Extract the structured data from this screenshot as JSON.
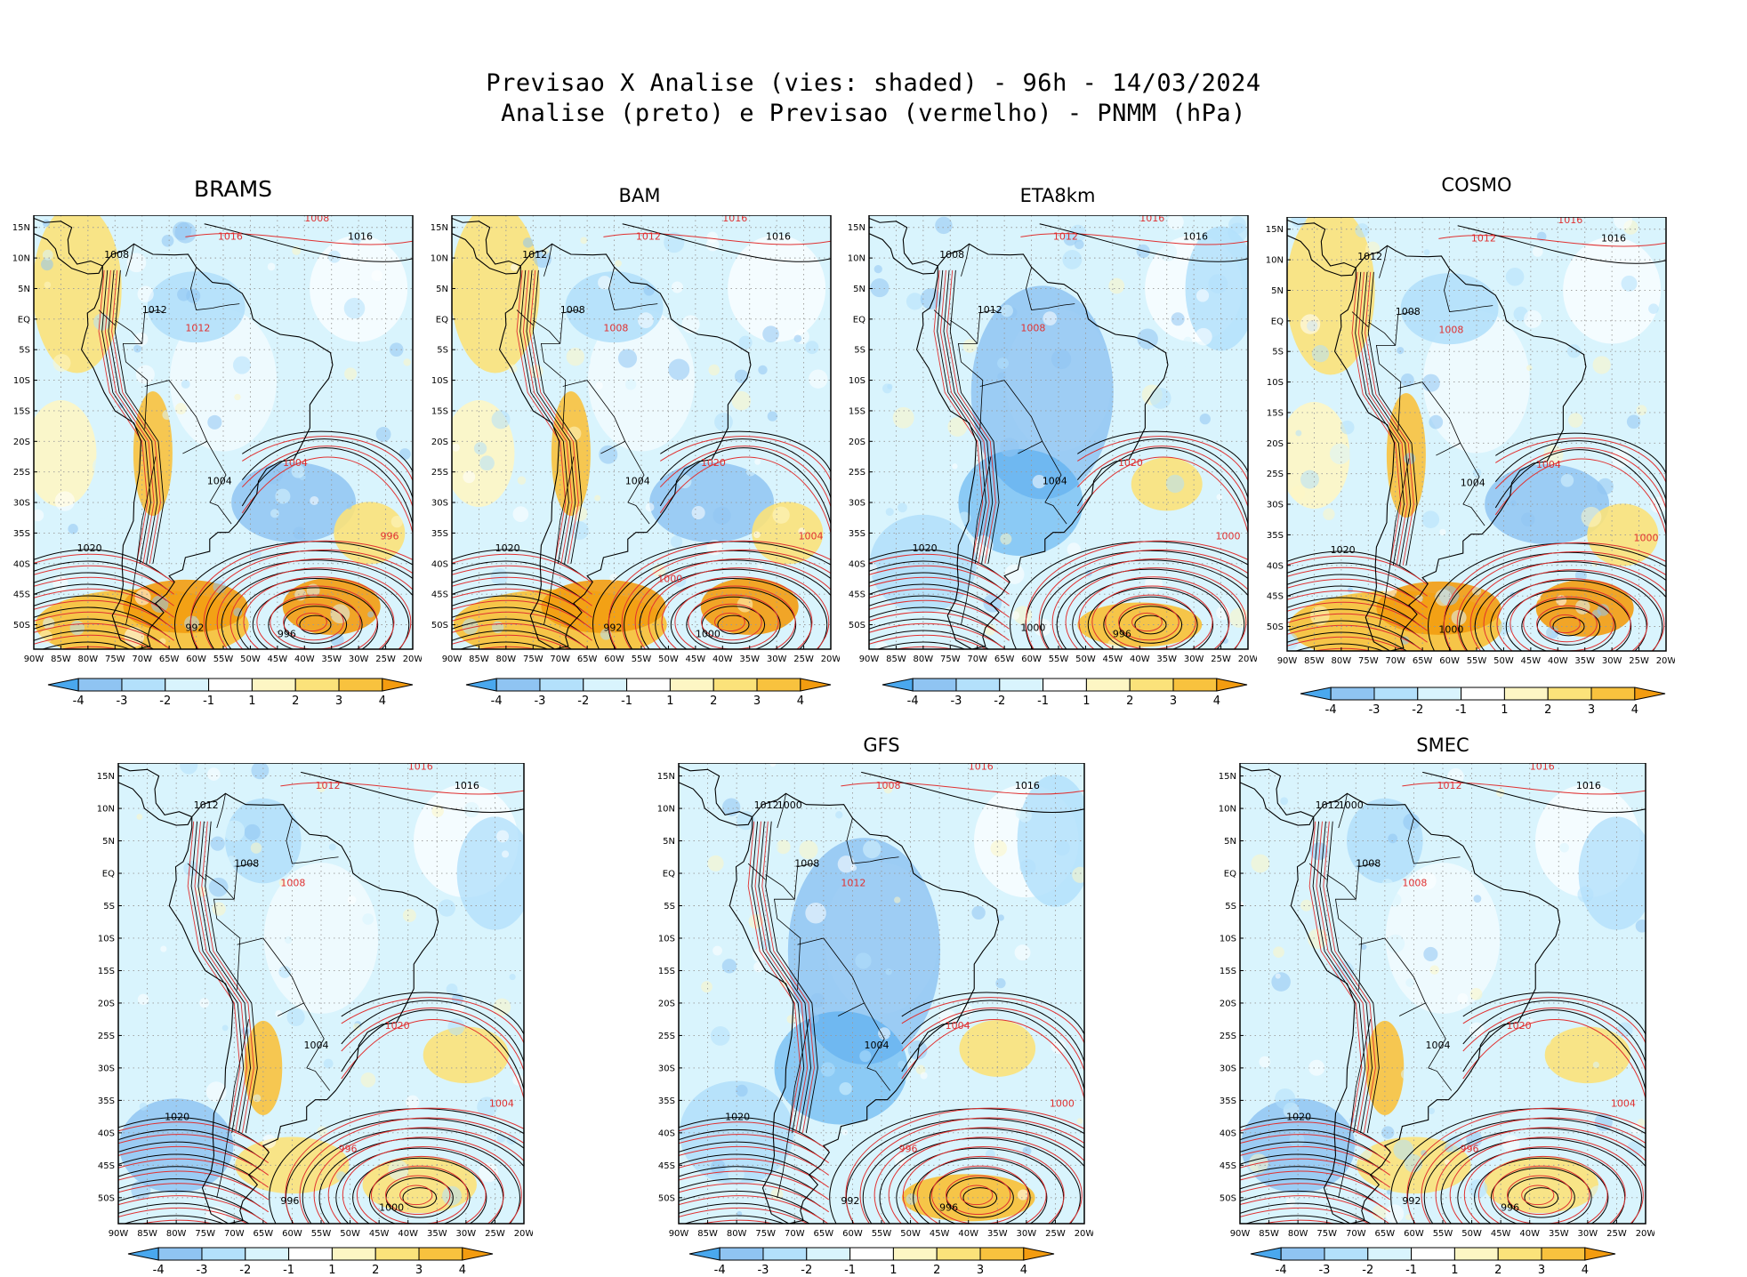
{
  "title": {
    "line1": "Previsao X Analise (vies: shaded) - 96h - 14/03/2024",
    "line2": "Analise (preto) e Previsao (vermelho) - PNMM (hPa)"
  },
  "colors": {
    "neg4": "#4aa8ee",
    "neg3": "#8fc4f2",
    "neg2": "#b3e0fb",
    "neg1": "#d9f4fd",
    "zero": "#ffffff",
    "pos1": "#fdf6c4",
    "pos2": "#fbe27a",
    "pos3": "#f8c23e",
    "pos4": "#f39c10",
    "analysis_line": "#000000",
    "forecast_line": "#e03030",
    "grid": "#9a9a9a"
  },
  "axes": {
    "lat_labels": [
      "15N",
      "10N",
      "5N",
      "EQ",
      "5S",
      "10S",
      "15S",
      "20S",
      "25S",
      "30S",
      "35S",
      "40S",
      "45S",
      "50S"
    ],
    "lon_labels": [
      "90W",
      "85W",
      "80W",
      "75W",
      "70W",
      "65W",
      "60W",
      "55W",
      "50W",
      "45W",
      "40W",
      "35W",
      "30W",
      "25W",
      "20W"
    ]
  },
  "colorbar_labels": [
    "-4",
    "-3",
    "-2",
    "-1",
    "1",
    "2",
    "3",
    "4"
  ],
  "panels": [
    {
      "name": "BRAMS",
      "bias": "warm",
      "black_labels": [
        "1008",
        "1016",
        "1012",
        "1004",
        "1020",
        "992",
        "996"
      ],
      "red_labels": [
        "1016",
        "1008",
        "1012",
        "1004",
        "996"
      ]
    },
    {
      "name": "BAM",
      "bias": "warm",
      "black_labels": [
        "1012",
        "1016",
        "1008",
        "1004",
        "1020",
        "992",
        "1000"
      ],
      "red_labels": [
        "1012",
        "1016",
        "1008",
        "1020",
        "1004",
        "1000"
      ]
    },
    {
      "name": "ETA8km",
      "bias": "cold",
      "black_labels": [
        "1008",
        "1016",
        "1012",
        "1004",
        "1020",
        "1000",
        "996"
      ],
      "red_labels": [
        "1012",
        "1016",
        "1008",
        "1020",
        "1000"
      ]
    },
    {
      "name": "COSMO",
      "bias": "warm",
      "black_labels": [
        "1012",
        "1016",
        "1008",
        "1004",
        "1020",
        "1000"
      ],
      "red_labels": [
        "1012",
        "1016",
        "1008",
        "1004",
        "1000"
      ]
    },
    {
      "name": "",
      "bias": "mixed",
      "black_labels": [
        "1012",
        "1016",
        "1008",
        "1004",
        "1020",
        "996",
        "1000"
      ],
      "red_labels": [
        "1012",
        "1016",
        "1008",
        "1020",
        "1004",
        "996"
      ]
    },
    {
      "name": "GFS",
      "bias": "cold",
      "black_labels": [
        "1012",
        "1016",
        "1008",
        "1004",
        "1020",
        "992",
        "996",
        "1000"
      ],
      "red_labels": [
        "1008",
        "1016",
        "1012",
        "1004",
        "1000",
        "996"
      ]
    },
    {
      "name": "SMEC",
      "bias": "mixed",
      "black_labels": [
        "1012",
        "1016",
        "1008",
        "1004",
        "1020",
        "992",
        "996",
        "1000"
      ],
      "red_labels": [
        "1012",
        "1016",
        "1008",
        "1020",
        "1004",
        "996"
      ]
    }
  ]
}
